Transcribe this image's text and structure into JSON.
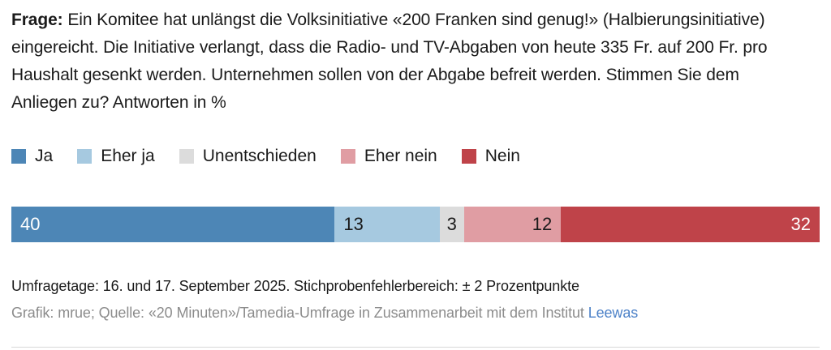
{
  "question": {
    "label": "Frage:",
    "text": "Ein Komitee hat unlängst die Volksinitiative «200 Franken sind genug!» (Halbierungsinitiative) eingereicht. Die Initiative verlangt, dass die Radio- und TV-Abgaben von heute 335 Fr. auf 200 Fr. pro Haushalt gesenkt werden. Unternehmen sollen von der Abgabe befreit werden. Stimmen Sie dem Anliegen zu? Antworten in %"
  },
  "chart_data": {
    "type": "bar",
    "variant": "horizontal-stacked",
    "title": "Frage: Ein Komitee hat unlängst die Volksinitiative «200 Franken sind genug!» (Halbierungsinitiative) eingereicht. Die Initiative verlangt, dass die Radio- und TV-Abgaben von heute 335 Fr. auf 200 Fr. pro Haushalt gesenkt werden. Unternehmen sollen von der Abgabe befreit werden. Stimmen Sie dem Anliegen zu? Antworten in %",
    "unit": "%",
    "xlim": [
      0,
      100
    ],
    "legend_position": "top",
    "grid": false,
    "categories": [
      "Ja",
      "Eher ja",
      "Unentschieden",
      "Eher nein",
      "Nein"
    ],
    "values": [
      40,
      13,
      3,
      12,
      32
    ],
    "colors": [
      "#4d86b6",
      "#a6c9e0",
      "#dcdcdc",
      "#e09da3",
      "#bf4349"
    ]
  },
  "footer": {
    "survey_note": "Umfragetage: 16. und 17. September 2025. Stichprobenfehlerbereich: ± 2 Prozentpunkte",
    "credit_prefix": "Grafik: mrue; Quelle: «20 Minuten»/Tamedia-Umfrage in Zusammenarbeit mit dem Institut ",
    "credit_link": "Leewas"
  },
  "colors": {
    "text": "#1a1a1a",
    "muted": "#8c8c8c",
    "link": "#4d82c8",
    "divider": "#d8d8d8"
  }
}
